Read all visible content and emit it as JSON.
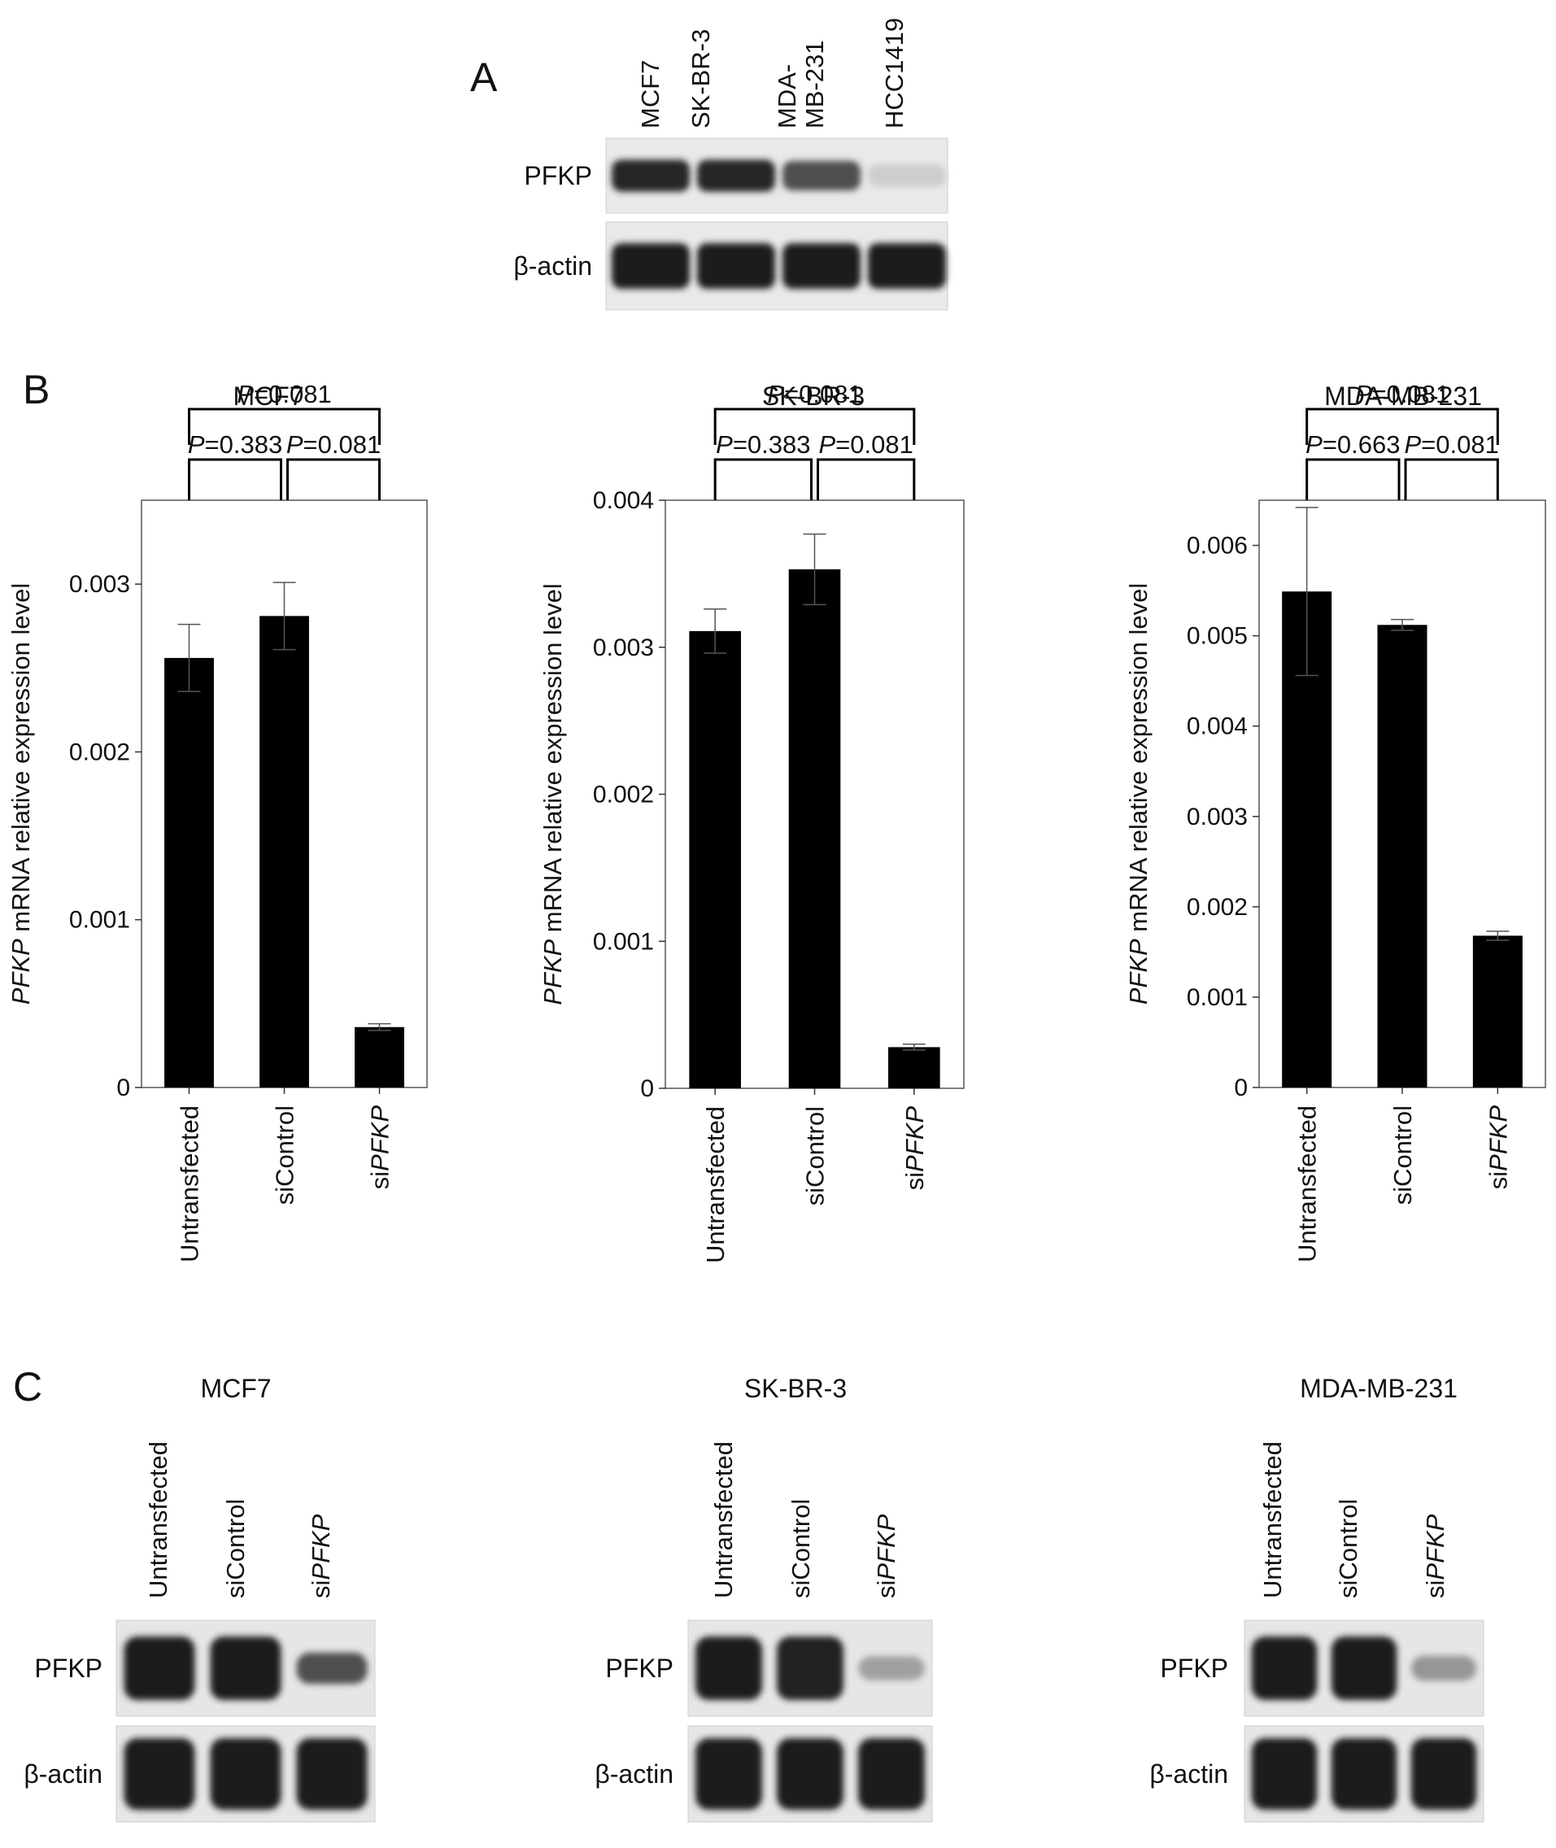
{
  "panels": {
    "a": {
      "letter": "A"
    },
    "b": {
      "letter": "B"
    },
    "c": {
      "letter": "C"
    }
  },
  "western_a": {
    "cell_lines": [
      "MCF7",
      "SK-BR-3",
      [
        "MDA-",
        "MB-231"
      ],
      "HCC1419"
    ],
    "rows": [
      {
        "label": "PFKP",
        "intensity": [
          0.95,
          0.95,
          0.75,
          0.12
        ]
      },
      {
        "label": "β-actin",
        "intensity": [
          1.0,
          1.0,
          1.0,
          1.0
        ]
      }
    ]
  },
  "chart_data": [
    {
      "type": "bar",
      "title": "MCF7",
      "ylabel_italic": "PFKP",
      "ylabel_rest": " mRNA relative expression level",
      "categories": [
        "Untransfected",
        "siControl",
        "siPFKP"
      ],
      "values": [
        0.00256,
        0.00281,
        0.00036
      ],
      "errors": [
        0.0002,
        0.0002,
        2e-05
      ],
      "ylim": [
        0,
        0.0035
      ],
      "yticks": [
        0,
        0.001,
        0.002,
        0.003
      ],
      "ytick_labels": [
        "0",
        "0.001",
        "0.002",
        "0.003"
      ],
      "comparisons": [
        {
          "from": 0,
          "to": 2,
          "italic": "P",
          "text": "=0.081"
        },
        {
          "from": 0,
          "to": 1,
          "italic": "P",
          "text": "=0.383"
        },
        {
          "from": 1,
          "to": 2,
          "italic": "P",
          "text": "=0.081"
        }
      ]
    },
    {
      "type": "bar",
      "title": "SK-BR-3",
      "ylabel_italic": "PFKP",
      "ylabel_rest": " mRNA relative expression level",
      "categories": [
        "Untransfected",
        "siControl",
        "siPFKP"
      ],
      "values": [
        0.00311,
        0.00353,
        0.00028
      ],
      "errors": [
        0.00015,
        0.00024,
        2e-05
      ],
      "ylim": [
        0,
        0.004
      ],
      "yticks": [
        0,
        0.001,
        0.002,
        0.003,
        0.004
      ],
      "ytick_labels": [
        "0",
        "0.001",
        "0.002",
        "0.003",
        "0.004"
      ],
      "comparisons": [
        {
          "from": 0,
          "to": 2,
          "italic": "P",
          "text": "=0.081"
        },
        {
          "from": 0,
          "to": 1,
          "italic": "P",
          "text": "=0.383"
        },
        {
          "from": 1,
          "to": 2,
          "italic": "P",
          "text": "=0.081"
        }
      ]
    },
    {
      "type": "bar",
      "title": "MDA-MB-231",
      "ylabel_italic": "PFKP",
      "ylabel_rest": " mRNA relative expression level",
      "categories": [
        "Untransfected",
        "siControl",
        "siPFKP"
      ],
      "values": [
        0.00549,
        0.00512,
        0.00168
      ],
      "errors": [
        0.00093,
        6e-05,
        5e-05
      ],
      "ylim": [
        0,
        0.0065
      ],
      "yticks": [
        0,
        0.001,
        0.002,
        0.003,
        0.004,
        0.005,
        0.006
      ],
      "ytick_labels": [
        "0",
        "0.001",
        "0.002",
        "0.003",
        "0.004",
        "0.005",
        "0.006"
      ],
      "comparisons": [
        {
          "from": 0,
          "to": 2,
          "italic": "P",
          "text": "=0.081"
        },
        {
          "from": 0,
          "to": 1,
          "italic": "P",
          "text": "=0.663"
        },
        {
          "from": 1,
          "to": 2,
          "italic": "P",
          "text": "=0.081"
        }
      ]
    }
  ],
  "western_c": [
    {
      "title": "MCF7",
      "lanes": [
        "Untransfected",
        "siControl",
        "siPFKP"
      ],
      "rows": [
        {
          "label": "PFKP",
          "intensity": [
            1.0,
            1.0,
            0.75
          ]
        },
        {
          "label": "β-actin",
          "intensity": [
            1.0,
            1.0,
            1.0
          ]
        }
      ]
    },
    {
      "title": "SK-BR-3",
      "lanes": [
        "Untransfected",
        "siControl",
        "siPFKP"
      ],
      "rows": [
        {
          "label": "PFKP",
          "intensity": [
            1.0,
            0.98,
            0.35
          ]
        },
        {
          "label": "β-actin",
          "intensity": [
            1.0,
            1.0,
            1.0
          ]
        }
      ]
    },
    {
      "title": "MDA-MB-231",
      "lanes": [
        "Untransfected",
        "siControl",
        "siPFKP"
      ],
      "rows": [
        {
          "label": "PFKP",
          "intensity": [
            1.0,
            1.0,
            0.4
          ]
        },
        {
          "label": "β-actin",
          "intensity": [
            1.0,
            1.0,
            1.0
          ]
        }
      ]
    }
  ]
}
